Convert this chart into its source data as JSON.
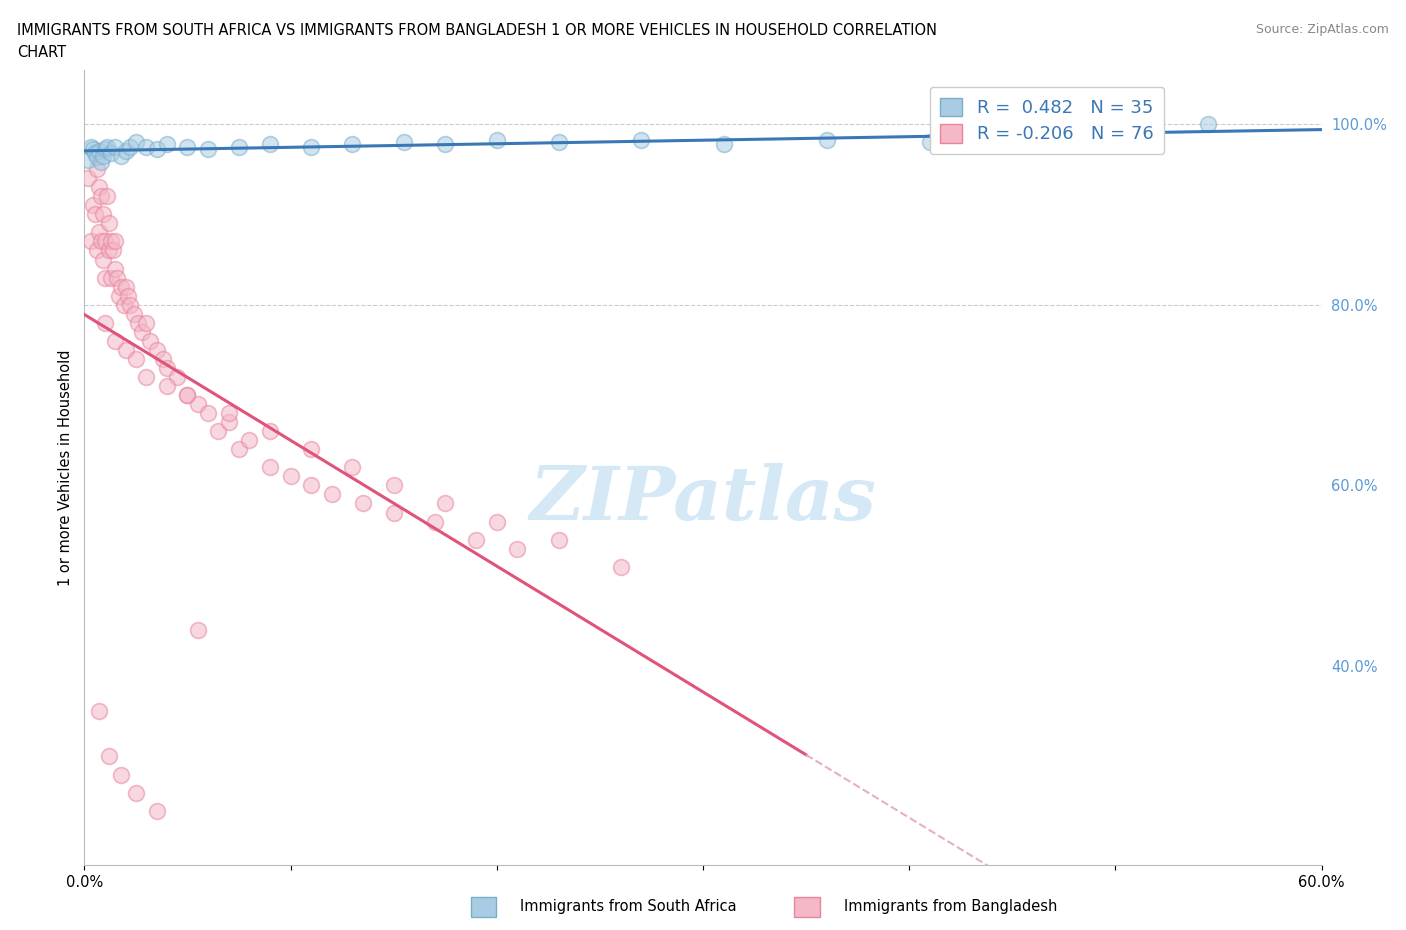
{
  "title_line1": "IMMIGRANTS FROM SOUTH AFRICA VS IMMIGRANTS FROM BANGLADESH 1 OR MORE VEHICLES IN HOUSEHOLD CORRELATION",
  "title_line2": "CHART",
  "source_text": "Source: ZipAtlas.com",
  "ylabel": "1 or more Vehicles in Household",
  "xlim": [
    0.0,
    0.6
  ],
  "ylim": [
    0.18,
    1.06
  ],
  "blue_color": "#a8cce4",
  "blue_edge_color": "#7aaec8",
  "pink_color": "#f4b8c8",
  "pink_edge_color": "#e8849c",
  "blue_line_color": "#3a78b5",
  "pink_line_color": "#e0547a",
  "pink_dash_color": "#e8b0bf",
  "watermark_text": "ZIPatlas",
  "watermark_color": "#cde4f5",
  "legend_R1": "R =  0.482   N = 35",
  "legend_R2": "R = -0.206   N = 76",
  "legend_label1": "Immigrants from South Africa",
  "legend_label2": "Immigrants from Bangladesh",
  "grid_color": "#cccccc",
  "background_color": "#ffffff",
  "right_tick_color": "#5b9bd5",
  "south_africa_x": [
    0.002,
    0.003,
    0.004,
    0.005,
    0.006,
    0.007,
    0.008,
    0.009,
    0.01,
    0.011,
    0.013,
    0.015,
    0.018,
    0.02,
    0.022,
    0.025,
    0.03,
    0.035,
    0.04,
    0.05,
    0.06,
    0.075,
    0.09,
    0.11,
    0.13,
    0.155,
    0.175,
    0.2,
    0.23,
    0.27,
    0.31,
    0.36,
    0.41,
    0.47,
    0.545
  ],
  "south_africa_y": [
    0.96,
    0.975,
    0.972,
    0.968,
    0.963,
    0.97,
    0.958,
    0.965,
    0.972,
    0.975,
    0.968,
    0.975,
    0.965,
    0.97,
    0.975,
    0.98,
    0.975,
    0.972,
    0.978,
    0.975,
    0.972,
    0.975,
    0.978,
    0.975,
    0.978,
    0.98,
    0.978,
    0.982,
    0.98,
    0.982,
    0.978,
    0.982,
    0.98,
    0.982,
    1.0
  ],
  "bangladesh_x": [
    0.002,
    0.003,
    0.004,
    0.005,
    0.006,
    0.006,
    0.007,
    0.007,
    0.008,
    0.008,
    0.009,
    0.009,
    0.01,
    0.01,
    0.011,
    0.012,
    0.012,
    0.013,
    0.013,
    0.014,
    0.015,
    0.015,
    0.016,
    0.017,
    0.018,
    0.019,
    0.02,
    0.021,
    0.022,
    0.024,
    0.026,
    0.028,
    0.03,
    0.032,
    0.035,
    0.038,
    0.04,
    0.045,
    0.05,
    0.055,
    0.06,
    0.065,
    0.07,
    0.075,
    0.08,
    0.09,
    0.1,
    0.11,
    0.12,
    0.135,
    0.15,
    0.17,
    0.19,
    0.21,
    0.01,
    0.015,
    0.02,
    0.025,
    0.03,
    0.04,
    0.05,
    0.07,
    0.09,
    0.11,
    0.13,
    0.15,
    0.175,
    0.2,
    0.23,
    0.26,
    0.007,
    0.012,
    0.018,
    0.025,
    0.035,
    0.055
  ],
  "bangladesh_y": [
    0.94,
    0.87,
    0.91,
    0.9,
    0.86,
    0.95,
    0.88,
    0.93,
    0.87,
    0.92,
    0.85,
    0.9,
    0.87,
    0.83,
    0.92,
    0.86,
    0.89,
    0.83,
    0.87,
    0.86,
    0.87,
    0.84,
    0.83,
    0.81,
    0.82,
    0.8,
    0.82,
    0.81,
    0.8,
    0.79,
    0.78,
    0.77,
    0.78,
    0.76,
    0.75,
    0.74,
    0.73,
    0.72,
    0.7,
    0.69,
    0.68,
    0.66,
    0.67,
    0.64,
    0.65,
    0.62,
    0.61,
    0.6,
    0.59,
    0.58,
    0.57,
    0.56,
    0.54,
    0.53,
    0.78,
    0.76,
    0.75,
    0.74,
    0.72,
    0.71,
    0.7,
    0.68,
    0.66,
    0.64,
    0.62,
    0.6,
    0.58,
    0.56,
    0.54,
    0.51,
    0.35,
    0.3,
    0.28,
    0.26,
    0.24,
    0.44
  ],
  "dot_size": 130,
  "dot_alpha": 0.55,
  "dot_lw": 1.2
}
